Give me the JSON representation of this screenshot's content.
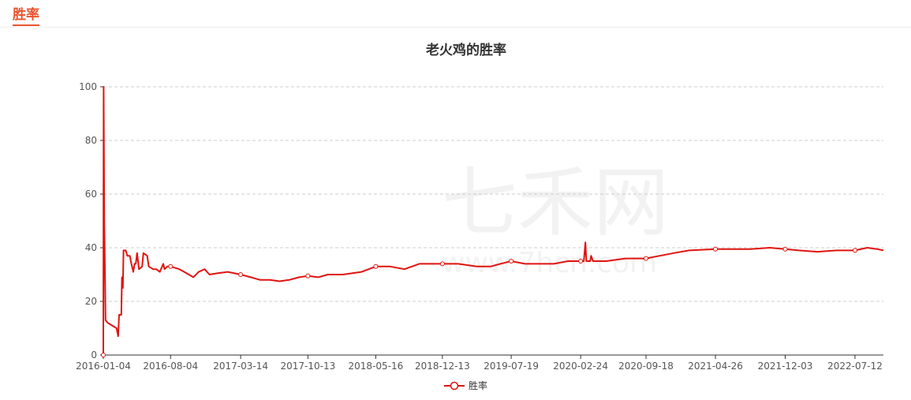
{
  "header": {
    "tab_label": "胜率"
  },
  "watermark": {
    "brand": "七禾网",
    "url": "www.7hcn.com"
  },
  "colors": {
    "accent": "#e8532b",
    "series": "#e0140f",
    "grid": "#cccccc"
  },
  "chart_data": {
    "type": "line",
    "title": "老火鸡的胜率",
    "xlabel": "",
    "ylabel": "",
    "ylim": [
      0,
      100
    ],
    "yticks": [
      0,
      20,
      40,
      60,
      80,
      100
    ],
    "xlim": [
      "2016-01-04",
      "2022-10-10"
    ],
    "xticks": [
      "2016-01-04",
      "2016-08-04",
      "2017-03-14",
      "2017-10-13",
      "2018-05-16",
      "2018-12-13",
      "2019-07-19",
      "2020-02-24",
      "2020-09-18",
      "2021-04-26",
      "2021-12-03",
      "2022-07-12"
    ],
    "grid": "horizontal dashed",
    "legend": "bottom-center",
    "series": [
      {
        "name": "胜率",
        "points": [
          [
            "2016-01-04",
            0
          ],
          [
            "2016-01-05",
            100
          ],
          [
            "2016-01-07",
            50
          ],
          [
            "2016-01-09",
            33
          ],
          [
            "2016-01-11",
            13
          ],
          [
            "2016-01-18",
            12
          ],
          [
            "2016-02-01",
            11
          ],
          [
            "2016-02-15",
            10
          ],
          [
            "2016-02-20",
            7
          ],
          [
            "2016-02-23",
            15
          ],
          [
            "2016-03-01",
            15
          ],
          [
            "2016-03-03",
            29
          ],
          [
            "2016-03-06",
            25
          ],
          [
            "2016-03-08",
            39
          ],
          [
            "2016-03-15",
            39
          ],
          [
            "2016-03-20",
            37
          ],
          [
            "2016-03-28",
            37
          ],
          [
            "2016-04-02",
            34
          ],
          [
            "2016-04-08",
            31
          ],
          [
            "2016-04-12",
            34
          ],
          [
            "2016-04-16",
            34
          ],
          [
            "2016-04-20",
            38
          ],
          [
            "2016-04-26",
            32
          ],
          [
            "2016-05-06",
            33
          ],
          [
            "2016-05-10",
            38
          ],
          [
            "2016-05-22",
            37
          ],
          [
            "2016-05-27",
            33
          ],
          [
            "2016-06-10",
            32
          ],
          [
            "2016-06-20",
            32
          ],
          [
            "2016-07-01",
            31
          ],
          [
            "2016-07-12",
            34
          ],
          [
            "2016-07-16",
            32
          ],
          [
            "2016-07-25",
            33
          ],
          [
            "2016-08-04",
            33
          ],
          [
            "2016-09-01",
            32
          ],
          [
            "2016-10-01",
            30
          ],
          [
            "2016-10-15",
            29
          ],
          [
            "2016-11-01",
            31
          ],
          [
            "2016-11-20",
            32
          ],
          [
            "2016-12-05",
            30
          ],
          [
            "2017-01-01",
            30.5
          ],
          [
            "2017-02-01",
            31
          ],
          [
            "2017-03-14",
            30
          ],
          [
            "2017-04-15",
            29
          ],
          [
            "2017-05-15",
            28
          ],
          [
            "2017-06-15",
            28
          ],
          [
            "2017-07-15",
            27.5
          ],
          [
            "2017-08-15",
            28
          ],
          [
            "2017-09-15",
            29
          ],
          [
            "2017-10-13",
            29.5
          ],
          [
            "2017-11-15",
            29
          ],
          [
            "2017-12-15",
            30
          ],
          [
            "2018-02-01",
            30
          ],
          [
            "2018-04-01",
            31
          ],
          [
            "2018-05-16",
            33
          ],
          [
            "2018-07-01",
            33
          ],
          [
            "2018-08-15",
            32
          ],
          [
            "2018-10-01",
            34
          ],
          [
            "2018-12-13",
            34
          ],
          [
            "2019-02-01",
            34
          ],
          [
            "2019-04-01",
            33
          ],
          [
            "2019-05-15",
            33
          ],
          [
            "2019-06-15",
            34
          ],
          [
            "2019-07-19",
            35
          ],
          [
            "2019-09-01",
            34
          ],
          [
            "2019-10-15",
            34
          ],
          [
            "2019-12-01",
            34
          ],
          [
            "2020-01-15",
            35
          ],
          [
            "2020-02-24",
            35
          ],
          [
            "2020-03-05",
            35
          ],
          [
            "2020-03-10",
            42
          ],
          [
            "2020-03-13",
            35
          ],
          [
            "2020-03-25",
            35
          ],
          [
            "2020-03-28",
            37
          ],
          [
            "2020-04-03",
            35
          ],
          [
            "2020-05-15",
            35
          ],
          [
            "2020-07-15",
            36
          ],
          [
            "2020-09-18",
            36
          ],
          [
            "2020-11-01",
            37
          ],
          [
            "2020-12-15",
            38
          ],
          [
            "2021-02-01",
            39
          ],
          [
            "2021-04-26",
            39.5
          ],
          [
            "2021-06-15",
            39.5
          ],
          [
            "2021-08-15",
            39.5
          ],
          [
            "2021-10-15",
            40
          ],
          [
            "2021-12-03",
            39.5
          ],
          [
            "2022-01-15",
            39
          ],
          [
            "2022-03-15",
            38.5
          ],
          [
            "2022-05-15",
            39
          ],
          [
            "2022-07-12",
            39
          ],
          [
            "2022-08-20",
            40
          ],
          [
            "2022-09-20",
            39.5
          ],
          [
            "2022-10-10",
            39
          ]
        ]
      }
    ]
  }
}
